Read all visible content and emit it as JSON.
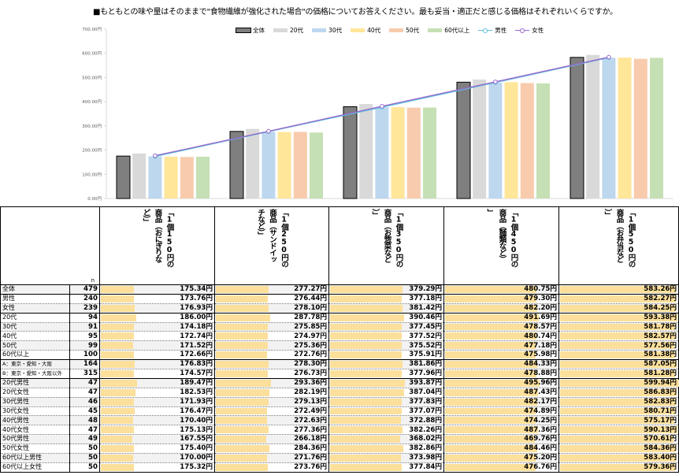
{
  "title": "■もともとの味や量はそのままで\"食物繊維が強化された場合\"の価格についてお答えください。最も妥当・適正だと感じる価格はそれぞれいくらですか。",
  "chart_data": {
    "type": "bar",
    "title": "",
    "xlabel": "",
    "ylabel": "",
    "ylim": [
      0,
      700
    ],
    "yticks": [
      "0.00円",
      "100.00円",
      "200.00円",
      "300.00円",
      "400.00円",
      "500.00円",
      "600.00円",
      "700.00円"
    ],
    "grid": false,
    "legend_position": "top-center",
    "categories": [
      "1個150円の商品（おにぎりなど）",
      "1個250円の商品（サンドイッチなど）",
      "1個350円の商品（お惣菜など）",
      "1個450円の商品（麺類など）",
      "1個550円の商品（お弁当など）"
    ],
    "series": [
      {
        "name": "全体",
        "kind": "bar",
        "color": "#7f7f7f",
        "values": [
          175.34,
          277.27,
          379.29,
          480.75,
          583.26
        ]
      },
      {
        "name": "20代",
        "kind": "bar",
        "color": "#d9d9d9",
        "values": [
          186.0,
          287.78,
          390.46,
          491.69,
          593.38
        ]
      },
      {
        "name": "30代",
        "kind": "bar",
        "color": "#bdd7ee",
        "values": [
          174.18,
          275.85,
          377.45,
          478.57,
          581.78
        ]
      },
      {
        "name": "40代",
        "kind": "bar",
        "color": "#ffe699",
        "values": [
          172.74,
          274.97,
          377.52,
          480.74,
          582.57
        ]
      },
      {
        "name": "50代",
        "kind": "bar",
        "color": "#f8cbad",
        "values": [
          171.52,
          275.36,
          375.52,
          477.18,
          577.56
        ]
      },
      {
        "name": "60代以上",
        "kind": "bar",
        "color": "#c5e0b4",
        "values": [
          172.66,
          272.76,
          375.91,
          475.98,
          581.38
        ]
      },
      {
        "name": "男性",
        "kind": "line",
        "color": "#5bc0de",
        "values": [
          173.76,
          276.44,
          377.18,
          479.3,
          582.27
        ]
      },
      {
        "name": "女性",
        "kind": "line",
        "color": "#9966cc",
        "values": [
          176.93,
          278.1,
          381.42,
          482.2,
          584.25
        ]
      }
    ]
  },
  "table": {
    "n_header": "n",
    "columns": [
      "「1個150円の商品（おにぎりなど）」",
      "「1個250円の商品（サンドイッチなど）」",
      "「1個350円の商品（お惣菜など）」",
      "「1個450円の商品（麺類など）」",
      "「1個550円の商品（お弁当など）」"
    ],
    "bar_color": "#fbdf9b",
    "bar_scale_max": 600,
    "rows": [
      {
        "label": "全体",
        "n": "479",
        "values": [
          "175.34円",
          "277.27円",
          "379.29円",
          "480.75円",
          "583.26円"
        ],
        "nums": [
          175.34,
          277.27,
          379.29,
          480.75,
          583.26
        ]
      },
      {
        "label": "男性",
        "n": "240",
        "values": [
          "173.76円",
          "276.44円",
          "377.18円",
          "479.30円",
          "582.27円"
        ],
        "nums": [
          173.76,
          276.44,
          377.18,
          479.3,
          582.27
        ]
      },
      {
        "label": "女性",
        "n": "239",
        "values": [
          "176.93円",
          "278.10円",
          "381.42円",
          "482.20円",
          "584.25円"
        ],
        "nums": [
          176.93,
          278.1,
          381.42,
          482.2,
          584.25
        ]
      },
      {
        "label": "20代",
        "n": "94",
        "values": [
          "186.00円",
          "287.78円",
          "390.46円",
          "491.69円",
          "593.38円"
        ],
        "nums": [
          186.0,
          287.78,
          390.46,
          491.69,
          593.38
        ]
      },
      {
        "label": "30代",
        "n": "91",
        "values": [
          "174.18円",
          "275.85円",
          "377.45円",
          "478.57円",
          "581.78円"
        ],
        "nums": [
          174.18,
          275.85,
          377.45,
          478.57,
          581.78
        ]
      },
      {
        "label": "40代",
        "n": "95",
        "values": [
          "172.74円",
          "274.97円",
          "377.52円",
          "480.74円",
          "582.57円"
        ],
        "nums": [
          172.74,
          274.97,
          377.52,
          480.74,
          582.57
        ]
      },
      {
        "label": "50代",
        "n": "99",
        "values": [
          "171.52円",
          "275.36円",
          "375.52円",
          "477.18円",
          "577.56円"
        ],
        "nums": [
          171.52,
          275.36,
          375.52,
          477.18,
          577.56
        ]
      },
      {
        "label": "60代以上",
        "n": "100",
        "values": [
          "172.66円",
          "272.76円",
          "375.91円",
          "475.98円",
          "581.38円"
        ],
        "nums": [
          172.66,
          272.76,
          375.91,
          475.98,
          581.38
        ]
      },
      {
        "label": "A：東京・愛知・大阪",
        "n": "164",
        "values": [
          "176.83円",
          "278.30円",
          "381.86円",
          "484.33円",
          "587.05円"
        ],
        "nums": [
          176.83,
          278.3,
          381.86,
          484.33,
          587.05
        ]
      },
      {
        "label": "B：東京・愛知・大阪以外",
        "n": "315",
        "values": [
          "174.57円",
          "276.73円",
          "377.96円",
          "478.88円",
          "581.28円"
        ],
        "nums": [
          174.57,
          276.73,
          377.96,
          478.88,
          581.28
        ]
      },
      {
        "label": "20代男性",
        "n": "47",
        "values": [
          "189.47円",
          "293.36円",
          "393.87円",
          "495.96円",
          "599.94円"
        ],
        "nums": [
          189.47,
          293.36,
          393.87,
          495.96,
          599.94
        ]
      },
      {
        "label": "20代女性",
        "n": "47",
        "values": [
          "182.53円",
          "282.19円",
          "387.04円",
          "487.43円",
          "586.83円"
        ],
        "nums": [
          182.53,
          282.19,
          387.04,
          487.43,
          586.83
        ]
      },
      {
        "label": "30代男性",
        "n": "46",
        "values": [
          "171.93円",
          "279.13円",
          "377.83円",
          "482.17円",
          "582.83円"
        ],
        "nums": [
          171.93,
          279.13,
          377.83,
          482.17,
          582.83
        ]
      },
      {
        "label": "30代女性",
        "n": "45",
        "values": [
          "176.47円",
          "272.49円",
          "377.07円",
          "474.89円",
          "580.71円"
        ],
        "nums": [
          176.47,
          272.49,
          377.07,
          474.89,
          580.71
        ]
      },
      {
        "label": "40代男性",
        "n": "48",
        "values": [
          "170.40円",
          "272.63円",
          "372.88円",
          "474.25円",
          "575.17円"
        ],
        "nums": [
          170.4,
          272.63,
          372.88,
          474.25,
          575.17
        ]
      },
      {
        "label": "40代女性",
        "n": "47",
        "values": [
          "175.13円",
          "277.36円",
          "382.26円",
          "487.36円",
          "590.13円"
        ],
        "nums": [
          175.13,
          277.36,
          382.26,
          487.36,
          590.13
        ]
      },
      {
        "label": "50代男性",
        "n": "49",
        "values": [
          "167.55円",
          "266.18円",
          "368.02円",
          "469.76円",
          "570.61円"
        ],
        "nums": [
          167.55,
          266.18,
          368.02,
          469.76,
          570.61
        ]
      },
      {
        "label": "50代女性",
        "n": "50",
        "values": [
          "175.40円",
          "284.36円",
          "382.86円",
          "484.46円",
          "584.36円"
        ],
        "nums": [
          175.4,
          284.36,
          382.86,
          484.46,
          584.36
        ]
      },
      {
        "label": "60代以上男性",
        "n": "50",
        "values": [
          "170.00円",
          "271.76円",
          "373.98円",
          "475.20円",
          "583.40円"
        ],
        "nums": [
          170.0,
          271.76,
          373.98,
          475.2,
          583.4
        ]
      },
      {
        "label": "60代以上女性",
        "n": "50",
        "values": [
          "175.32円",
          "273.76円",
          "377.84円",
          "476.76円",
          "579.36円"
        ],
        "nums": [
          175.32,
          273.76,
          377.84,
          476.76,
          579.36
        ]
      }
    ]
  }
}
